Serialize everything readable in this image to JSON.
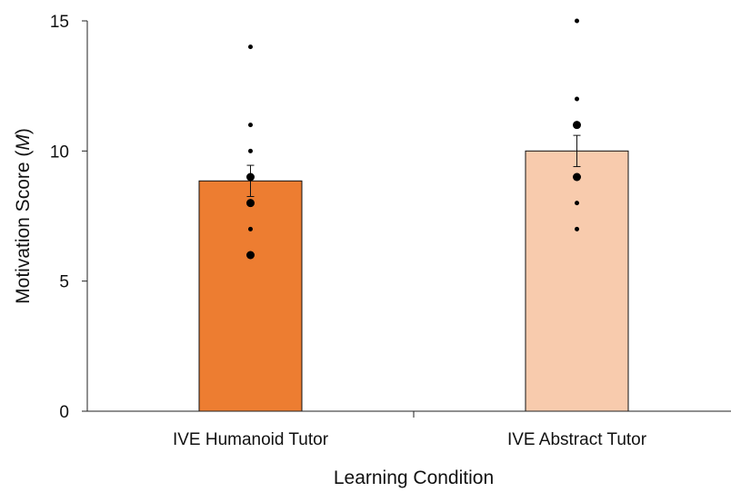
{
  "chart_data": {
    "type": "bar",
    "title": "",
    "xlabel": "Learning Condition",
    "ylabel": {
      "prefix": "Motivation Score (",
      "italic": "M",
      "suffix": ")"
    },
    "ylim": [
      0,
      15
    ],
    "yticks": [
      0,
      5,
      10,
      15
    ],
    "grid": false,
    "categories": [
      "IVE Humanoid Tutor",
      "IVE Abstract Tutor"
    ],
    "values": [
      8.85,
      10.0
    ],
    "error": [
      0.6,
      0.6
    ],
    "colors": [
      "#ED7D31",
      "#F8CBAD"
    ],
    "points": [
      [
        {
          "y": 14,
          "size": "small"
        },
        {
          "y": 11,
          "size": "small"
        },
        {
          "y": 10,
          "size": "small"
        },
        {
          "y": 9,
          "size": "large"
        },
        {
          "y": 8,
          "size": "large"
        },
        {
          "y": 7,
          "size": "small"
        },
        {
          "y": 6,
          "size": "large"
        }
      ],
      [
        {
          "y": 15,
          "size": "small"
        },
        {
          "y": 12,
          "size": "small"
        },
        {
          "y": 11,
          "size": "large"
        },
        {
          "y": 9,
          "size": "large"
        },
        {
          "y": 8,
          "size": "small"
        },
        {
          "y": 7,
          "size": "small"
        }
      ]
    ]
  }
}
